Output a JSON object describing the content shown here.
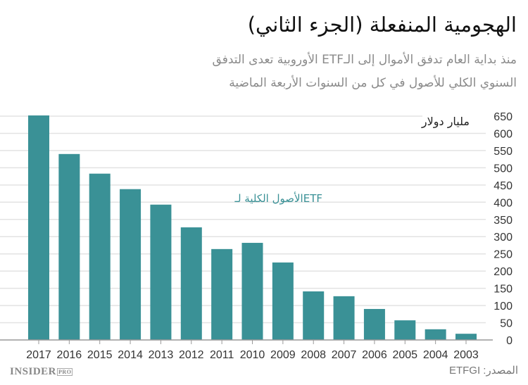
{
  "title": "الهجومية المنفعلة (الجزء الثاني)",
  "subtitle_lines": [
    "منذ بداية العام تدفق الأموال إلى الـETF الأوروبية تعدى التدفق",
    "السنوي الكلي للأصول في كل من السنوات الأربعة الماضية"
  ],
  "source": "المصدر: ETFGI",
  "logo": {
    "main": "INSIDER",
    "badge": "PRO"
  },
  "chart_data": {
    "type": "bar",
    "categories": [
      "2017",
      "2016",
      "2015",
      "2014",
      "2013",
      "2012",
      "2011",
      "2010",
      "2009",
      "2008",
      "2007",
      "2006",
      "2005",
      "2004",
      "2003"
    ],
    "values": [
      652,
      540,
      483,
      438,
      393,
      327,
      264,
      282,
      225,
      141,
      127,
      90,
      57,
      31,
      18
    ],
    "series": [
      {
        "name": "الأصول الكلية لـETF",
        "values": [
          652,
          540,
          483,
          438,
          393,
          327,
          264,
          282,
          225,
          141,
          127,
          90,
          57,
          31,
          18
        ]
      }
    ],
    "ylabel": "مليار دولار",
    "ylim": [
      0,
      650
    ],
    "yticks": [
      0,
      50,
      100,
      150,
      200,
      250,
      300,
      350,
      400,
      450,
      500,
      550,
      600,
      650
    ],
    "grid": true,
    "bar_color": "#3a9196",
    "legend": "center"
  }
}
